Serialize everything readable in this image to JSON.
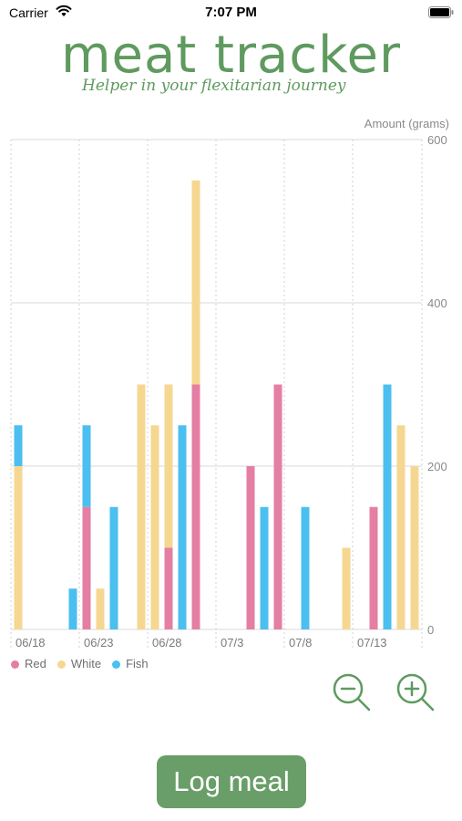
{
  "status_bar": {
    "carrier": "Carrier",
    "time": "7:07 PM"
  },
  "header": {
    "title": "meat tracker",
    "subtitle": "Helper in your flexitarian journey"
  },
  "chart_data": {
    "type": "bar",
    "stacked": true,
    "ylabel": "Amount (grams)",
    "ylim": [
      0,
      600
    ],
    "yticks": [
      0,
      200,
      400,
      600
    ],
    "xtick_labels": [
      "06/18",
      "06/23",
      "06/28",
      "07/3",
      "07/8",
      "07/13"
    ],
    "x_start_day": 0,
    "series_order": [
      "Red",
      "White",
      "Fish"
    ],
    "entries": [
      {
        "day": 0,
        "red": 0,
        "white": 200,
        "fish": 50
      },
      {
        "day": 4,
        "red": 0,
        "white": 0,
        "fish": 50
      },
      {
        "day": 5,
        "red": 150,
        "white": 0,
        "fish": 100
      },
      {
        "day": 6,
        "red": 0,
        "white": 50,
        "fish": 0
      },
      {
        "day": 7,
        "red": 0,
        "white": 0,
        "fish": 150
      },
      {
        "day": 9,
        "red": 0,
        "white": 300,
        "fish": 0
      },
      {
        "day": 10,
        "red": 0,
        "white": 250,
        "fish": 0
      },
      {
        "day": 11,
        "red": 100,
        "white": 200,
        "fish": 0
      },
      {
        "day": 12,
        "red": 0,
        "white": 0,
        "fish": 250
      },
      {
        "day": 13,
        "red": 300,
        "white": 250,
        "fish": 0
      },
      {
        "day": 17,
        "red": 200,
        "white": 0,
        "fish": 0
      },
      {
        "day": 18,
        "red": 0,
        "white": 0,
        "fish": 150
      },
      {
        "day": 19,
        "red": 300,
        "white": 0,
        "fish": 0
      },
      {
        "day": 21,
        "red": 0,
        "white": 0,
        "fish": 150
      },
      {
        "day": 24,
        "red": 0,
        "white": 100,
        "fish": 0
      },
      {
        "day": 26,
        "red": 150,
        "white": 0,
        "fish": 0
      },
      {
        "day": 27,
        "red": 0,
        "white": 0,
        "fish": 300
      },
      {
        "day": 28,
        "red": 0,
        "white": 250,
        "fish": 0
      },
      {
        "day": 29,
        "red": 0,
        "white": 200,
        "fish": 0
      }
    ],
    "colors": {
      "red": "#e57ea3",
      "white": "#f6d791",
      "fish": "#4bbfef"
    },
    "grid": true,
    "legend_position": "bottom-left"
  },
  "legend": [
    {
      "label": "Red",
      "color": "#e57ea3"
    },
    {
      "label": "White",
      "color": "#f6d791"
    },
    {
      "label": "Fish",
      "color": "#4bbfef"
    }
  ],
  "controls": {
    "zoom_out_icon": "zoom-out-icon",
    "zoom_in_icon": "zoom-in-icon",
    "log_meal_label": "Log meal"
  },
  "theme": {
    "brand": "#5f9a5f",
    "button": "#6a9e68"
  }
}
